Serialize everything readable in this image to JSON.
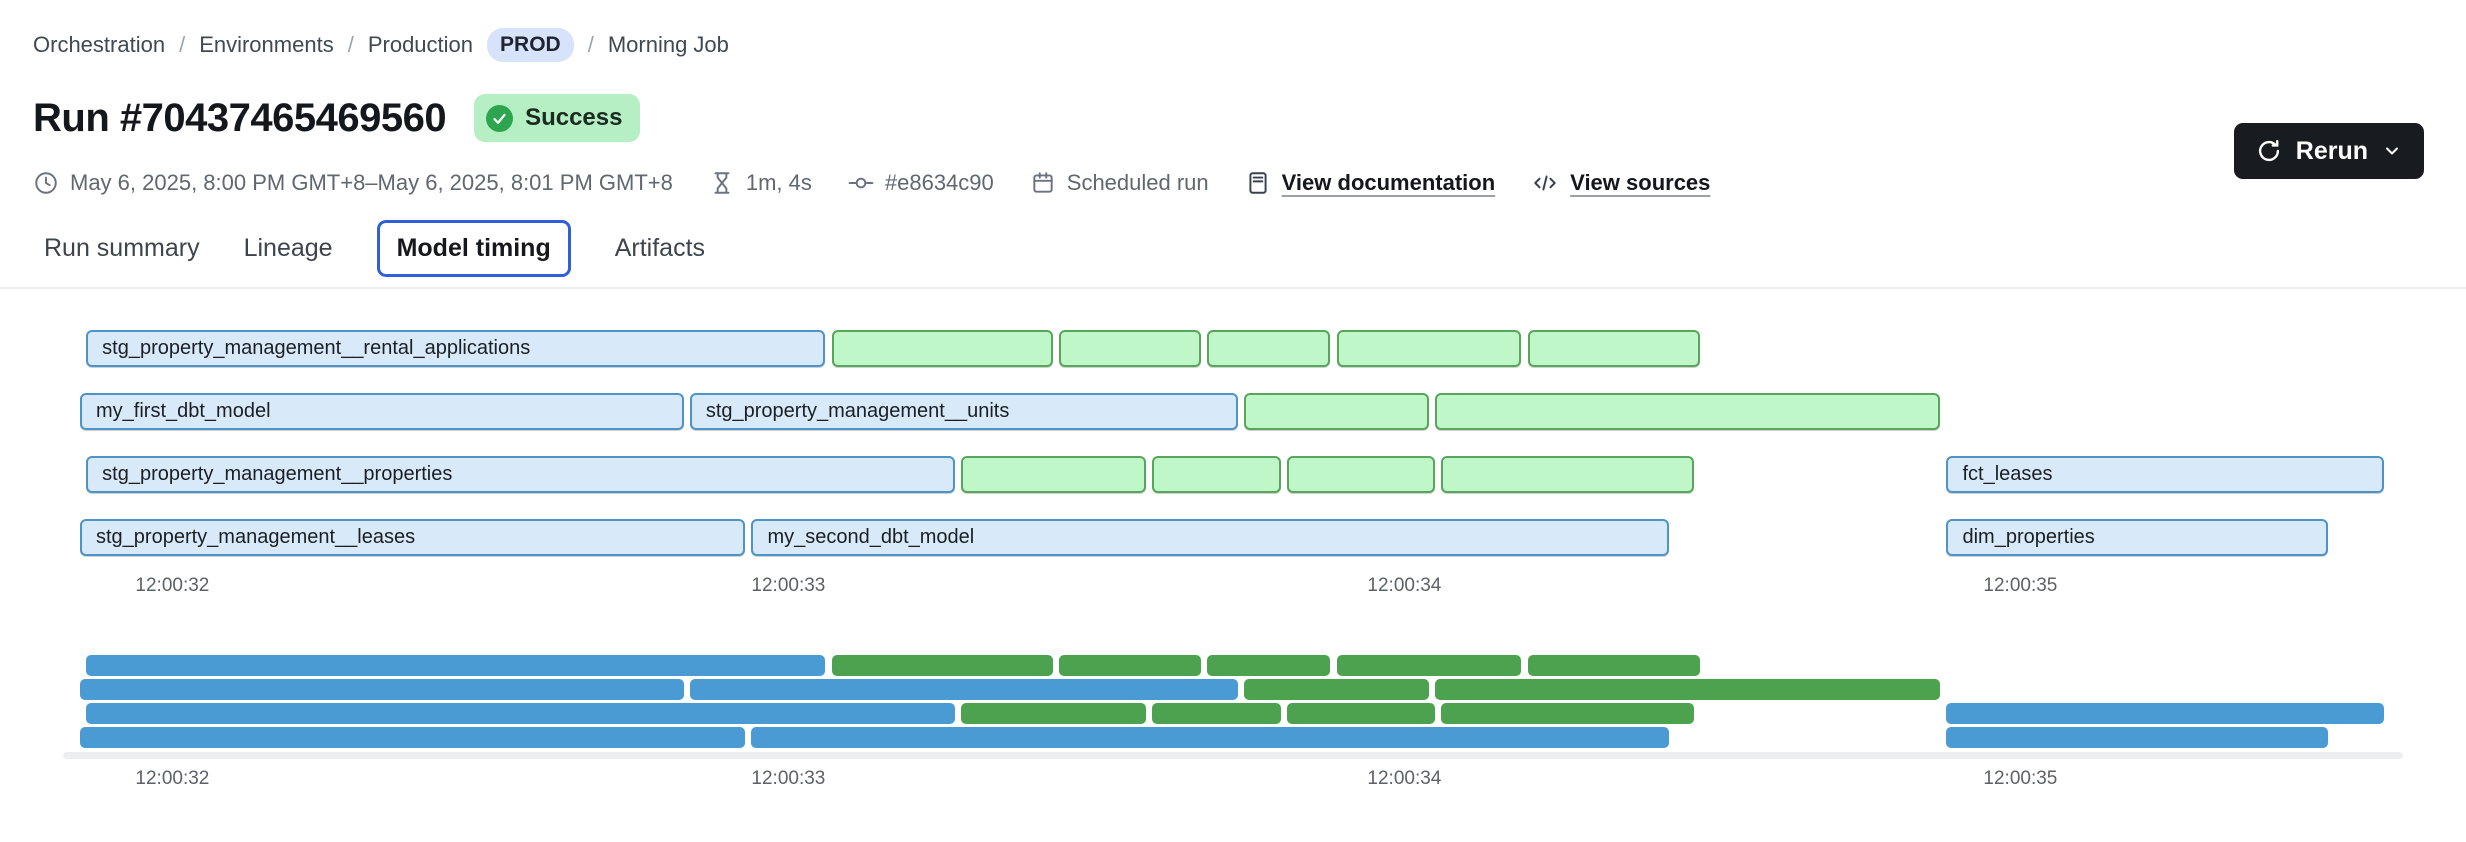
{
  "colors": {
    "accent_blue": "#2f5fd9",
    "prod_pill_bg": "#d7e3fb",
    "badge_bg": "#b6efc3",
    "badge_check": "#2da44e",
    "rerun_bg": "#181b20",
    "bar_blue_fill": "#d8eafa",
    "bar_blue_border": "#4e94c8",
    "bar_green_fill": "#c0f7c9",
    "bar_green_border": "#57a65c",
    "mini_blue": "#4a9bd3",
    "mini_green": "#4ca24f"
  },
  "breadcrumb": {
    "separator": "/",
    "items": [
      {
        "label": "Orchestration"
      },
      {
        "label": "Environments"
      },
      {
        "label": "Production"
      },
      {
        "label": "Morning Job"
      }
    ],
    "env_badge": "PROD"
  },
  "header": {
    "title": "Run #70437465469560",
    "status_label": "Success"
  },
  "meta": {
    "time_range": "May 6, 2025, 8:00 PM GMT+8–May 6, 2025, 8:01 PM GMT+8",
    "duration": "1m, 4s",
    "commit": "#e8634c90",
    "trigger": "Scheduled run",
    "docs_link": "View documentation",
    "sources_link": "View sources"
  },
  "actions": {
    "rerun_label": "Rerun"
  },
  "tabs": {
    "items": [
      {
        "label": "Run summary",
        "active": false
      },
      {
        "label": "Lineage",
        "active": false
      },
      {
        "label": "Model timing",
        "active": true
      },
      {
        "label": "Artifacts",
        "active": false
      }
    ]
  },
  "icons": {
    "clock": "🕐",
    "hourglass": "⧖",
    "commit": "-o-",
    "calendar": "📅",
    "document": "📄",
    "code": "</>",
    "rerun": "↻",
    "chevron_down": "⌄",
    "check": "✓"
  },
  "chart_data": {
    "type": "gantt",
    "title": "Model timing",
    "axis": {
      "min": 31.85,
      "max": 35.6,
      "unit": "seconds after 12:00:00"
    },
    "ticks": [
      {
        "label": "12:00:32",
        "s": 32
      },
      {
        "label": "12:00:33",
        "s": 33
      },
      {
        "label": "12:00:34",
        "s": 34
      },
      {
        "label": "12:00:35",
        "s": 35
      }
    ],
    "rows": [
      {
        "bars": [
          {
            "label": "stg_property_management__rental_applications",
            "color": "blue",
            "start": 31.86,
            "end": 33.06
          },
          {
            "color": "green",
            "start": 33.07,
            "end": 33.43
          },
          {
            "color": "green",
            "start": 33.44,
            "end": 33.67
          },
          {
            "color": "green",
            "start": 33.68,
            "end": 33.88
          },
          {
            "color": "green",
            "start": 33.89,
            "end": 34.19
          },
          {
            "color": "green",
            "start": 34.2,
            "end": 34.48
          }
        ]
      },
      {
        "bars": [
          {
            "label": "my_first_dbt_model",
            "color": "blue",
            "start": 31.85,
            "end": 32.83
          },
          {
            "label": "stg_property_management__units",
            "color": "blue",
            "start": 32.84,
            "end": 33.73
          },
          {
            "color": "green",
            "start": 33.74,
            "end": 34.04
          },
          {
            "color": "green",
            "start": 34.05,
            "end": 34.87
          }
        ]
      },
      {
        "bars": [
          {
            "label": "stg_property_management__properties",
            "color": "blue",
            "start": 31.86,
            "end": 33.27
          },
          {
            "color": "green",
            "start": 33.28,
            "end": 33.58
          },
          {
            "color": "green",
            "start": 33.59,
            "end": 33.8
          },
          {
            "color": "green",
            "start": 33.81,
            "end": 34.05
          },
          {
            "color": "green",
            "start": 34.06,
            "end": 34.47
          },
          {
            "label": "fct_leases",
            "color": "blue",
            "start": 34.88,
            "end": 35.59
          }
        ]
      },
      {
        "bars": [
          {
            "label": "stg_property_management__leases",
            "color": "blue",
            "start": 31.85,
            "end": 32.93
          },
          {
            "label": "my_second_dbt_model",
            "color": "blue",
            "start": 32.94,
            "end": 34.43
          },
          {
            "label": "dim_properties",
            "color": "blue",
            "start": 34.88,
            "end": 35.5
          }
        ]
      }
    ]
  }
}
